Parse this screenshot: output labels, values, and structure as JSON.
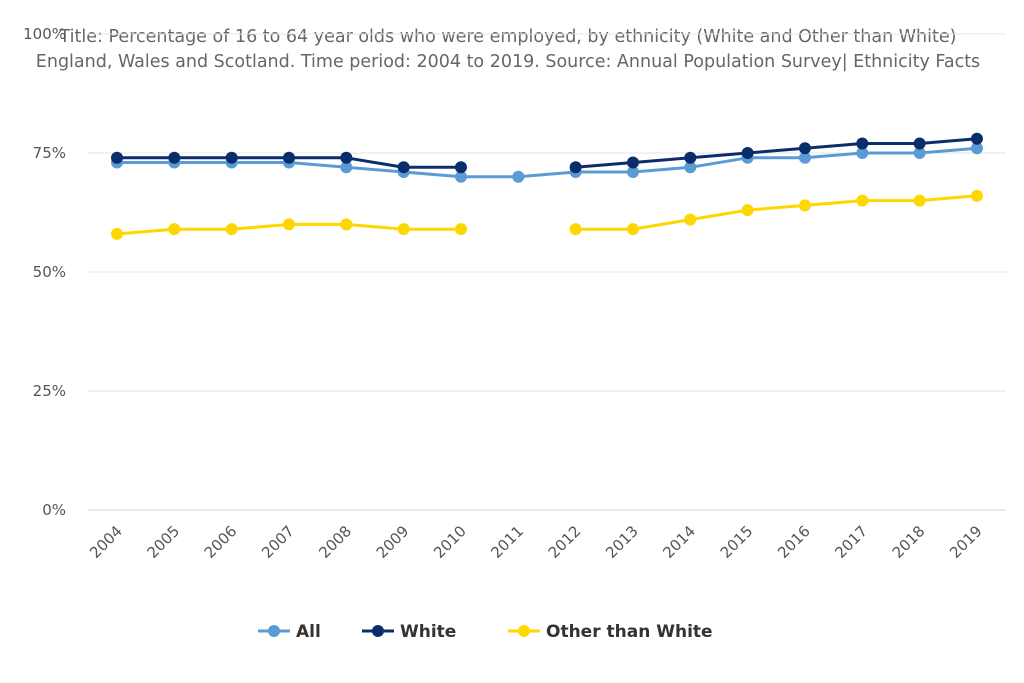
{
  "chart_data": {
    "type": "line",
    "title_lines": [
      "Title: Percentage of 16 to 64 year olds who were employed, by ethnicity (White and Other than White)",
      "England, Wales and Scotland. Time period: 2004 to 2019. Source: Annual Population Survey| Ethnicity Facts"
    ],
    "x": [
      "2004",
      "2005",
      "2006",
      "2007",
      "2008",
      "2009",
      "2010",
      "2011",
      "2012",
      "2013",
      "2014",
      "2015",
      "2016",
      "2017",
      "2018",
      "2019"
    ],
    "y_ticks": [
      "0%",
      "25%",
      "50%",
      "75%",
      "100%"
    ],
    "ylim": [
      0,
      100
    ],
    "grid": true,
    "legend_position": "bottom",
    "series": [
      {
        "name": "All",
        "color": "#5b9bd5",
        "values": [
          73,
          73,
          73,
          73,
          72,
          71,
          70,
          70,
          71,
          71,
          72,
          74,
          74,
          75,
          75,
          76
        ]
      },
      {
        "name": "White",
        "color": "#0b2d6b",
        "values": [
          74,
          74,
          74,
          74,
          74,
          72,
          72,
          null,
          72,
          73,
          74,
          75,
          76,
          77,
          77,
          78
        ]
      },
      {
        "name": "Other than White",
        "color": "#ffd700",
        "values": [
          58,
          59,
          59,
          60,
          60,
          59,
          59,
          null,
          59,
          59,
          61,
          63,
          64,
          65,
          65,
          66
        ]
      }
    ]
  }
}
